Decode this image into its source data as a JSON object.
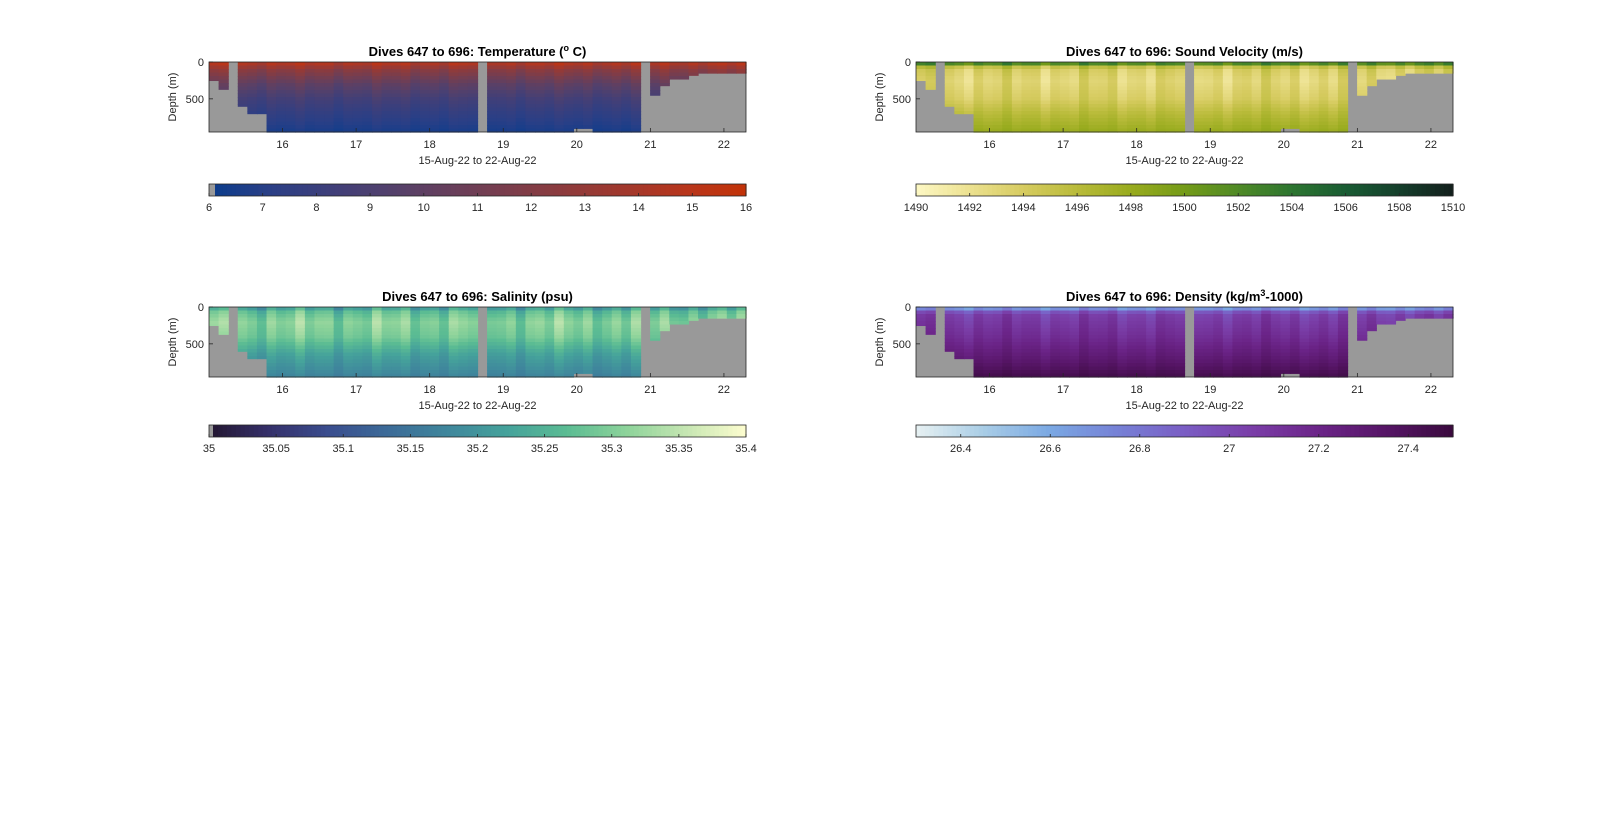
{
  "figure": {
    "panels": [
      {
        "key": "temperature",
        "title": "Dives 647 to 696: Temperature (",
        "title_sup": "o",
        "title_after": " C)"
      },
      {
        "key": "sound",
        "title": "Dives 647 to 696: Sound Velocity (m/s)",
        "title_sup": "",
        "title_after": ""
      },
      {
        "key": "salinity",
        "title": "Dives 647 to 696: Salinity (psu)",
        "title_sup": "",
        "title_after": ""
      },
      {
        "key": "density",
        "title": "Dives 647 to 696: Density (kg/m",
        "title_sup": "3",
        "title_after": "-1000)"
      }
    ]
  },
  "colors": {
    "no_data": "#999999",
    "axis": "#262626"
  },
  "chart_data": [
    {
      "type": "heatmap",
      "title": "Dives 647 to 696: Temperature (o C)",
      "xlabel": "15-Aug-22 to 22-Aug-22",
      "ylabel": "Depth (m)",
      "xlim": [
        15.0,
        22.3
      ],
      "ylim": [
        0,
        950
      ],
      "y_reversed": true,
      "xticks": [
        16,
        17,
        18,
        19,
        20,
        21,
        22
      ],
      "yticks": [
        0,
        500
      ],
      "colorbar": {
        "ticks": [
          6,
          7,
          8,
          9,
          10,
          11,
          12,
          13,
          14,
          15,
          16
        ],
        "range": [
          6,
          16
        ],
        "colormap": [
          "#0a3c8c",
          "#2a3f86",
          "#3e3f7a",
          "#52406c",
          "#663f5c",
          "#7a3d4c",
          "#8e3b3c",
          "#a2382c",
          "#b8361c",
          "#c23308"
        ]
      },
      "surface_value": 15.0,
      "bottom_value": 6.5,
      "profile": [
        [
          0,
          15
        ],
        [
          100,
          12.5
        ],
        [
          300,
          10
        ],
        [
          500,
          8.5
        ],
        [
          700,
          7.5
        ],
        [
          950,
          6.5
        ]
      ],
      "variation": 0.05
    },
    {
      "type": "heatmap",
      "title": "Dives 647 to 696: Sound Velocity (m/s)",
      "xlabel": "15-Aug-22 to 22-Aug-22",
      "ylabel": "Depth (m)",
      "xlim": [
        15.0,
        22.3
      ],
      "ylim": [
        0,
        950
      ],
      "y_reversed": true,
      "xticks": [
        16,
        17,
        18,
        19,
        20,
        21,
        22
      ],
      "yticks": [
        0,
        500
      ],
      "colorbar": {
        "ticks": [
          1490,
          1492,
          1494,
          1496,
          1498,
          1500,
          1502,
          1504,
          1506,
          1508,
          1510
        ],
        "range": [
          1490,
          1510
        ],
        "colormap": [
          "#fdf8c4",
          "#ece190",
          "#d6cb60",
          "#b9bb3a",
          "#98ab1e",
          "#749b18",
          "#4f8a26",
          "#2d7530",
          "#195c33",
          "#153f2c",
          "#131f1c"
        ]
      },
      "profile": [
        [
          0,
          1505
        ],
        [
          40,
          1500
        ],
        [
          80,
          1494
        ],
        [
          250,
          1493
        ],
        [
          500,
          1494
        ],
        [
          700,
          1496
        ],
        [
          950,
          1498
        ]
      ],
      "variation": 0.06
    },
    {
      "type": "heatmap",
      "title": "Dives 647 to 696: Salinity (psu)",
      "xlabel": "15-Aug-22 to 22-Aug-22",
      "ylabel": "Depth (m)",
      "xlim": [
        15.0,
        22.3
      ],
      "ylim": [
        0,
        950
      ],
      "y_reversed": true,
      "xticks": [
        16,
        17,
        18,
        19,
        20,
        21,
        22
      ],
      "yticks": [
        0,
        500
      ],
      "colorbar": {
        "ticks": [
          35,
          35.05,
          35.1,
          35.15,
          35.2,
          35.25,
          35.3,
          35.35,
          35.4
        ],
        "range": [
          35,
          35.4
        ],
        "colormap": [
          "#231630",
          "#35306a",
          "#3a4d8e",
          "#3c6b98",
          "#3f879c",
          "#45a29b",
          "#5bbc93",
          "#8dd39a",
          "#c6e6b2",
          "#fdfdcf"
        ]
      },
      "profile": [
        [
          0,
          35.2
        ],
        [
          60,
          35.27
        ],
        [
          200,
          35.31
        ],
        [
          400,
          35.29
        ],
        [
          650,
          35.22
        ],
        [
          950,
          35.17
        ]
      ],
      "variation": 0.08
    },
    {
      "type": "heatmap",
      "title": "Dives 647 to 696: Density (kg/m3-1000)",
      "xlabel": "15-Aug-22 to 22-Aug-22",
      "ylabel": "Depth (m)",
      "xlim": [
        15.0,
        22.3
      ],
      "ylim": [
        0,
        950
      ],
      "y_reversed": true,
      "xticks": [
        16,
        17,
        18,
        19,
        20,
        21,
        22
      ],
      "yticks": [
        0,
        500
      ],
      "colorbar": {
        "ticks": [
          26.4,
          26.6,
          26.8,
          27,
          27.2,
          27.4
        ],
        "range": [
          26.3,
          27.5
        ],
        "colormap": [
          "#e7f1f2",
          "#a9cde6",
          "#7aa8e3",
          "#7681d6",
          "#7a5dc4",
          "#7a3ea8",
          "#6b2488",
          "#561566",
          "#3a0a3e"
        ]
      },
      "profile": [
        [
          0,
          26.4
        ],
        [
          40,
          26.9
        ],
        [
          120,
          27.05
        ],
        [
          400,
          27.15
        ],
        [
          700,
          27.3
        ],
        [
          950,
          27.45
        ]
      ],
      "variation": 0.05
    }
  ]
}
